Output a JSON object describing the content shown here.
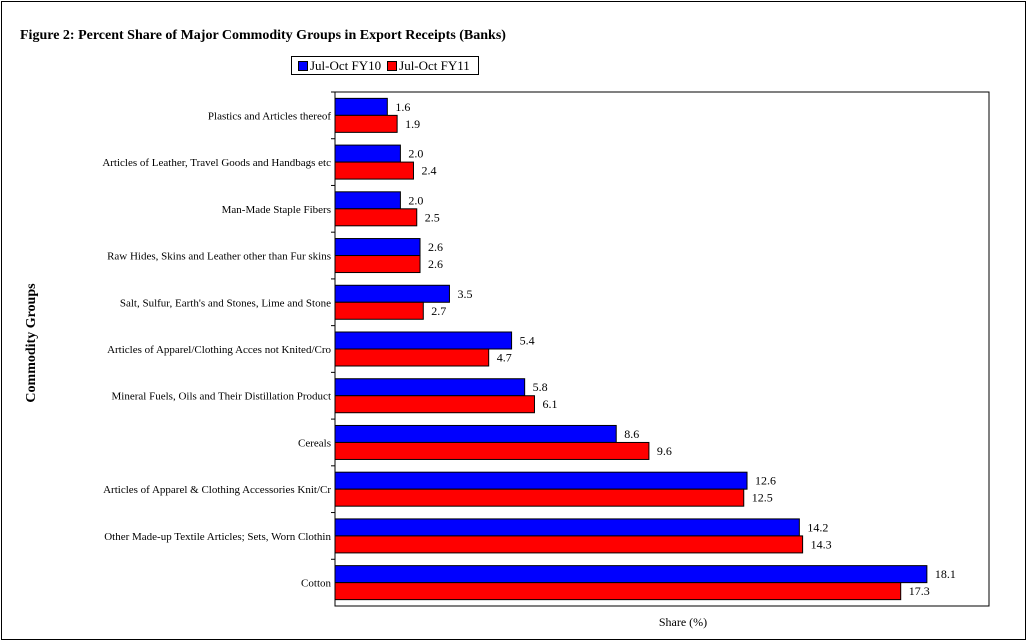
{
  "chart_data": {
    "type": "bar",
    "orientation": "horizontal",
    "title": "Figure 2: Percent Share of Major Commodity Groups in Export Receipts (Banks)",
    "xlabel": "Share (%)",
    "ylabel": "Commodity Groups",
    "xlim": [
      0,
      20
    ],
    "grid": false,
    "legend_position": "top",
    "categories": [
      "Plastics and Articles thereof",
      "Articles of Leather, Travel Goods and Handbags etc",
      "Man-Made Staple Fibers",
      "Raw Hides, Skins and Leather other than Fur skins",
      "Salt, Sulfur, Earth's and Stones, Lime and Stone",
      "Articles of Apparel/Clothing Acces not Knited/Cro",
      "Mineral Fuels, Oils and Their Distillation Product",
      "Cereals",
      "Articles of Apparel & Clothing Accessories Knit/Cr",
      "Other Made-up Textile Articles; Sets, Worn Clothin",
      "Cotton"
    ],
    "series": [
      {
        "name": "Jul-Oct FY10",
        "color": "#0000ff",
        "values": [
          1.6,
          2.0,
          2.0,
          2.6,
          3.5,
          5.4,
          5.8,
          8.6,
          12.6,
          14.2,
          18.1
        ]
      },
      {
        "name": "Jul-Oct FY11",
        "color": "#ff0000",
        "values": [
          1.9,
          2.4,
          2.5,
          2.6,
          2.7,
          4.7,
          6.1,
          9.6,
          12.5,
          14.3,
          17.3
        ]
      }
    ]
  }
}
